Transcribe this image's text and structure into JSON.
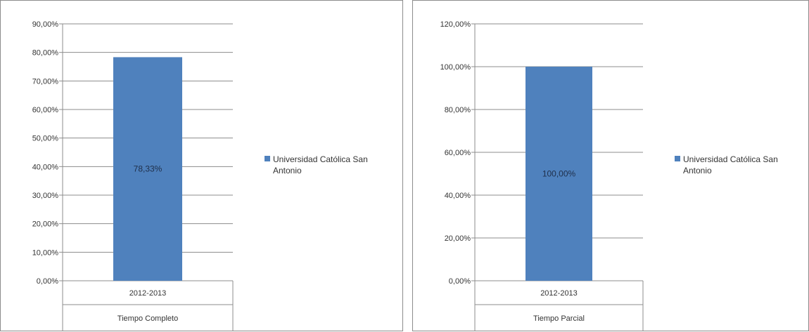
{
  "chart_data": [
    {
      "type": "bar",
      "categories": [
        "2012-2013"
      ],
      "category_group": "Tiempo Completo",
      "series": [
        {
          "name": "Universidad Católica San Antonio",
          "values": [
            78.33
          ],
          "color": "#4f81bd"
        }
      ],
      "data_labels": [
        "78,33%"
      ],
      "ylim": [
        0,
        90
      ],
      "y_ticks": [
        "0,00%",
        "10,00%",
        "20,00%",
        "30,00%",
        "40,00%",
        "50,00%",
        "60,00%",
        "70,00%",
        "80,00%",
        "90,00%"
      ],
      "legend": {
        "position": "right",
        "lines": [
          "Universidad Católica San",
          "Antonio"
        ]
      },
      "grid": true
    },
    {
      "type": "bar",
      "categories": [
        "2012-2013"
      ],
      "category_group": "Tiempo Parcial",
      "series": [
        {
          "name": "Universidad Católica San Antonio",
          "values": [
            100.0
          ],
          "color": "#4f81bd"
        }
      ],
      "data_labels": [
        "100,00%"
      ],
      "ylim": [
        0,
        120
      ],
      "y_ticks": [
        "0,00%",
        "20,00%",
        "40,00%",
        "60,00%",
        "80,00%",
        "100,00%",
        "120,00%"
      ],
      "legend": {
        "position": "right",
        "lines": [
          "Universidad Católica San",
          "Antonio"
        ]
      },
      "grid": true
    }
  ]
}
